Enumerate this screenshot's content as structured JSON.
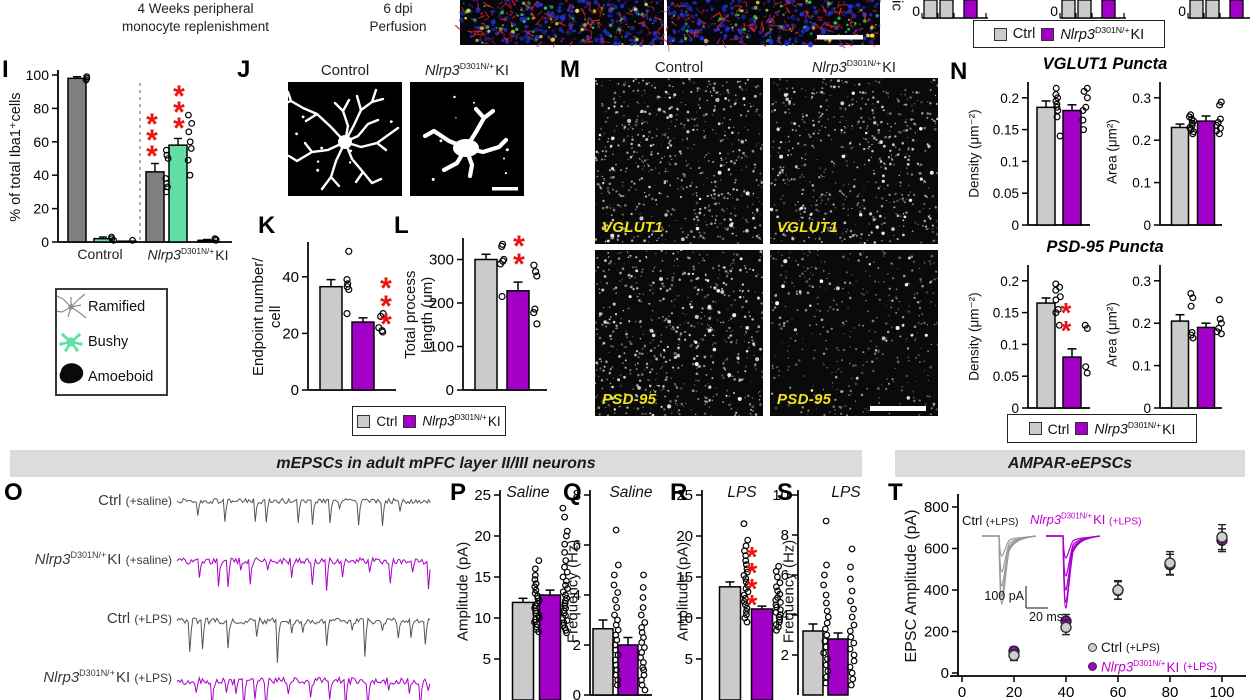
{
  "colors": {
    "ctrl_fill": "#cbcbcb",
    "ki_fill": "#a300c7",
    "magenta_text": "#c000d0",
    "trace_magenta": "#a800c8",
    "trace_gray": "#55555a",
    "ramified_gray": "#7f7f7f",
    "bushy_green": "#5fdfa2",
    "amoeboid_black": "#0a0a0a",
    "sig_red": "#e81313",
    "header_band": "#dcdcdc",
    "label_yellow": "#f0e416"
  },
  "gene": {
    "name": "Nlrp3",
    "sup": "D301N/+",
    "suffix": "KI"
  },
  "legend_shared": {
    "ctrl": "Ctrl"
  },
  "top": {
    "protocol_line1": "4 Weeks peripheral",
    "protocol_line2": "monocyte replenishment",
    "perfusion_line1": "6 dpi",
    "perfusion_line2": "Perfusion",
    "rotated_label_fragment": "Mic",
    "mini_zero": "0"
  },
  "panel_I": {
    "letter": "I",
    "ylabel": "% of total Iba1⁺cells",
    "xlabel_control": "Control",
    "chart_data": {
      "type": "bar",
      "categories": [
        "Control",
        "Nlrp3 D301N/+ KI"
      ],
      "ylim": [
        0,
        100
      ],
      "yticks": [
        0,
        20,
        40,
        60,
        80,
        100
      ],
      "series": [
        {
          "name": "Ramified",
          "values": [
            98,
            42
          ],
          "errors": [
            1,
            5
          ]
        },
        {
          "name": "Bushy",
          "values": [
            2,
            58
          ],
          "errors": [
            1,
            4
          ]
        },
        {
          "name": "Amoeboid",
          "values": [
            0.5,
            1
          ],
          "errors": [
            0.3,
            0.5
          ]
        }
      ],
      "points": {
        "control_ramified": [
          99,
          98,
          97
        ],
        "control_bushy": [
          3,
          2,
          1
        ],
        "control_amoeboid": [
          1
        ],
        "ki_ramified": [
          55,
          52,
          50,
          38,
          35,
          33,
          30
        ],
        "ki_bushy": [
          76,
          71,
          66,
          60,
          56,
          49,
          40
        ],
        "ki_amoeboid": [
          2,
          1.5,
          1
        ]
      },
      "sig_ki_ramified": "***",
      "sig_ki_bushy": "***"
    },
    "legend": [
      {
        "label": "Ramified"
      },
      {
        "label": "Bushy"
      },
      {
        "label": "Amoeboid"
      }
    ]
  },
  "panel_J": {
    "letter": "J",
    "header_control": "Control"
  },
  "panel_K": {
    "letter": "K",
    "ylabel_line1": "Endpoint number/",
    "ylabel_line2": "cell",
    "chart_data": {
      "type": "bar",
      "categories": [
        "Ctrl",
        "Nlrp3 D301N/+ KI"
      ],
      "values": [
        36.5,
        24
      ],
      "errors": [
        2.5,
        1.5
      ],
      "yticks": [
        0,
        20,
        40
      ],
      "ylim": [
        0,
        52
      ],
      "sig": "***",
      "points_ctrl": [
        49,
        39,
        37.5,
        36.5,
        35.5,
        27
      ],
      "points_ki": [
        27,
        26,
        22,
        21,
        20.5
      ]
    }
  },
  "panel_L": {
    "letter": "L",
    "ylabel_line1": "Total process",
    "ylabel_line2": "length (μm)",
    "chart_data": {
      "type": "bar",
      "categories": [
        "Ctrl",
        "Nlrp3 D301N/+ KI"
      ],
      "values": [
        300,
        228
      ],
      "errors": [
        12,
        20
      ],
      "yticks": [
        0,
        100,
        200,
        300
      ],
      "ylim": [
        0,
        345
      ],
      "sig": "**",
      "points_ctrl": [
        335,
        330,
        300,
        296,
        290,
        215
      ],
      "points_ki": [
        287,
        272,
        262,
        186,
        178,
        152
      ]
    }
  },
  "panel_M": {
    "letter": "M",
    "header_control": "Control",
    "img_labels": [
      "VGLUT1",
      "VGLUT1",
      "PSD-95",
      "PSD-95"
    ]
  },
  "panel_N": {
    "letter": "N",
    "title_vglut1": "VGLUT1 Puncta",
    "title_psd95": "PSD-95 Puncta",
    "ylabel_density": "Density (μm⁻²)",
    "ylabel_area": "Area (μm²)",
    "charts": {
      "vglut1_density": {
        "type": "bar",
        "values": [
          0.185,
          0.18
        ],
        "errors": [
          0.01,
          0.009
        ],
        "yticks": [
          0,
          0.05,
          0.1,
          0.15,
          0.2
        ],
        "ylim": [
          0,
          0.225
        ],
        "points_ctrl": [
          0.215,
          0.205,
          0.2,
          0.195,
          0.19,
          0.185,
          0.18,
          0.17,
          0.14
        ],
        "points_ki": [
          0.215,
          0.21,
          0.2,
          0.185,
          0.18,
          0.165,
          0.15
        ]
      },
      "vglut1_area": {
        "type": "bar",
        "values": [
          0.23,
          0.245
        ],
        "errors": [
          0.008,
          0.012
        ],
        "yticks": [
          0,
          0.1,
          0.2,
          0.3
        ],
        "ylim": [
          0,
          0.33
        ],
        "points_ctrl": [
          0.26,
          0.255,
          0.25,
          0.245,
          0.24,
          0.235,
          0.23,
          0.225,
          0.22,
          0.215
        ],
        "points_ki": [
          0.29,
          0.283,
          0.25,
          0.242,
          0.235,
          0.228,
          0.222,
          0.215
        ]
      },
      "psd95_density": {
        "type": "bar",
        "values": [
          0.165,
          0.08
        ],
        "errors": [
          0.008,
          0.013
        ],
        "yticks": [
          0,
          0.05,
          0.1,
          0.15,
          0.2
        ],
        "ylim": [
          0,
          0.225
        ],
        "sig": "**",
        "points_ctrl": [
          0.195,
          0.19,
          0.185,
          0.175,
          0.17,
          0.155,
          0.15,
          0.13
        ],
        "points_ki": [
          0.13,
          0.125,
          0.065,
          0.055
        ]
      },
      "psd95_area": {
        "type": "bar",
        "values": [
          0.205,
          0.19
        ],
        "errors": [
          0.015,
          0.01
        ],
        "yticks": [
          0,
          0.1,
          0.2,
          0.3
        ],
        "ylim": [
          0,
          0.33
        ],
        "points_ctrl": [
          0.27,
          0.26,
          0.24,
          0.178,
          0.172,
          0.165
        ],
        "points_ki": [
          0.255,
          0.21,
          0.2,
          0.188,
          0.18,
          0.175
        ]
      }
    }
  },
  "bottom": {
    "header_mepsc": "mEPSCs in adult mPFC layer II/III neurons",
    "header_ampar": "AMPAR-eEPSCs"
  },
  "panel_O": {
    "letter": "O",
    "rows": [
      {
        "main": "Ctrl",
        "paren": "(+saline)",
        "gene": false
      },
      {
        "main": "",
        "paren": "(+saline)",
        "gene": true
      },
      {
        "main": "Ctrl",
        "paren": "(+LPS)",
        "gene": false
      },
      {
        "main": "",
        "paren": "(+LPS)",
        "gene": true
      }
    ]
  },
  "panel_P": {
    "letter": "P",
    "title": "Saline",
    "ylabel": "Amplitude (pA)",
    "chart_data": {
      "type": "bar",
      "values": [
        11.9,
        12.8
      ],
      "errors": [
        0.5,
        0.6
      ],
      "yticks": [
        5,
        10,
        15,
        20,
        25
      ],
      "ylim": [
        0,
        25.6
      ],
      "points_ctrl": [
        8.3,
        8.6,
        8.9,
        9.2,
        9.5,
        9.8,
        10,
        10.3,
        10.6,
        10.9,
        11.2,
        11.5,
        11.8,
        12.1,
        12.4,
        12.7,
        13,
        13.4,
        13.8,
        14.2,
        14.7,
        15.2,
        16,
        17
      ],
      "points_ki": [
        8.2,
        8.5,
        8.8,
        9.1,
        9.4,
        9.7,
        10,
        10.3,
        10.6,
        10.9,
        11.2,
        11.5,
        11.8,
        12.1,
        12.4,
        12.8,
        13.2,
        13.6,
        14,
        14.5,
        15,
        15.6,
        16.2,
        17,
        18,
        19,
        20,
        20.6,
        22.3,
        23.4
      ]
    }
  },
  "panel_Q": {
    "letter": "Q",
    "title": "Saline",
    "ylabel": "Frequency (Hz)",
    "chart_data": {
      "type": "bar",
      "values": [
        2.65,
        2.0
      ],
      "errors": [
        0.35,
        0.3
      ],
      "yticks": [
        0,
        2,
        4,
        6,
        8
      ],
      "ylim": [
        0,
        8.2
      ],
      "points_ctrl": [
        0.4,
        0.6,
        0.8,
        1,
        1.2,
        1.4,
        1.6,
        1.8,
        2,
        2.2,
        2.4,
        2.6,
        2.8,
        3,
        3.2,
        3.5,
        3.8,
        4.1,
        4.4,
        4.8,
        5.2,
        6.6
      ],
      "points_ki": [
        0.2,
        0.4,
        0.6,
        0.8,
        1,
        1.1,
        1.3,
        1.5,
        1.7,
        1.9,
        2.1,
        2.3,
        2.5,
        2.7,
        2.9,
        3.2,
        3.5,
        3.9,
        4.3,
        4.8
      ]
    }
  },
  "panel_R": {
    "letter": "R",
    "title": "LPS",
    "ylabel": "Amplitude (pA)",
    "chart_data": {
      "type": "bar",
      "values": [
        13.8,
        11.1
      ],
      "errors": [
        0.6,
        0.35
      ],
      "yticks": [
        5,
        10,
        15,
        20,
        25
      ],
      "ylim": [
        0,
        25.6
      ],
      "sig": "****",
      "points_ctrl": [
        9.5,
        10,
        10.4,
        10.8,
        11.2,
        11.6,
        12,
        12.4,
        12.8,
        13.2,
        13.6,
        14,
        14.4,
        14.8,
        15.2,
        15.6,
        16,
        16.5,
        17,
        17.6,
        18.2,
        18.8,
        19.5,
        21.5
      ],
      "points_ki": [
        8.5,
        8.9,
        9.2,
        9.5,
        9.8,
        10.1,
        10.4,
        10.7,
        11,
        11.3,
        11.6,
        11.9,
        12.2,
        12.5,
        12.9,
        13.3,
        13.8,
        14.3,
        15,
        15.7,
        16.3
      ]
    }
  },
  "panel_S": {
    "letter": "S",
    "title": "LPS",
    "ylabel": "Frequency (Hz)",
    "chart_data": {
      "type": "bar",
      "values": [
        3.2,
        2.8
      ],
      "errors": [
        0.35,
        0.3
      ],
      "yticks": [
        2,
        4,
        6,
        8,
        10
      ],
      "ylim": [
        0,
        10.2
      ],
      "points_ctrl": [
        0.6,
        0.9,
        1.2,
        1.5,
        1.8,
        2.1,
        2.4,
        2.7,
        3,
        3.3,
        3.6,
        3.9,
        4.2,
        4.6,
        5,
        5.5,
        6,
        6.5,
        8.7
      ],
      "points_ki": [
        0.5,
        0.8,
        1.1,
        1.4,
        1.7,
        2,
        2.3,
        2.6,
        2.9,
        3.2,
        3.5,
        3.9,
        4.3,
        4.7,
        5.2,
        5.8,
        6.4,
        7.3
      ]
    }
  },
  "panel_T": {
    "letter": "T",
    "ylabel": "EPSC Amplitude (pA)",
    "chart_data": {
      "type": "scatter",
      "xticks": [
        0,
        20,
        40,
        60,
        80,
        100
      ],
      "yticks": [
        0,
        200,
        400,
        600,
        800
      ],
      "series": [
        {
          "name": "Ctrl (+LPS)",
          "x": [
            20,
            40,
            60,
            80,
            100
          ],
          "y": [
            85,
            220,
            400,
            530,
            655
          ],
          "err": [
            25,
            35,
            45,
            55,
            60
          ]
        },
        {
          "name": "Nlrp3 D301N/+ KI (+LPS)",
          "x": [
            20,
            40,
            60,
            80,
            100
          ],
          "y": [
            105,
            250,
            398,
            522,
            640
          ],
          "err": [
            20,
            32,
            42,
            50,
            55
          ]
        }
      ]
    },
    "inset": {
      "ctrl_main": "Ctrl",
      "paren": "(+LPS)",
      "scale_v": "100 pA",
      "scale_h": "20 ms"
    },
    "legend": {
      "ctrl_main": "Ctrl",
      "paren": "(+LPS)"
    }
  }
}
